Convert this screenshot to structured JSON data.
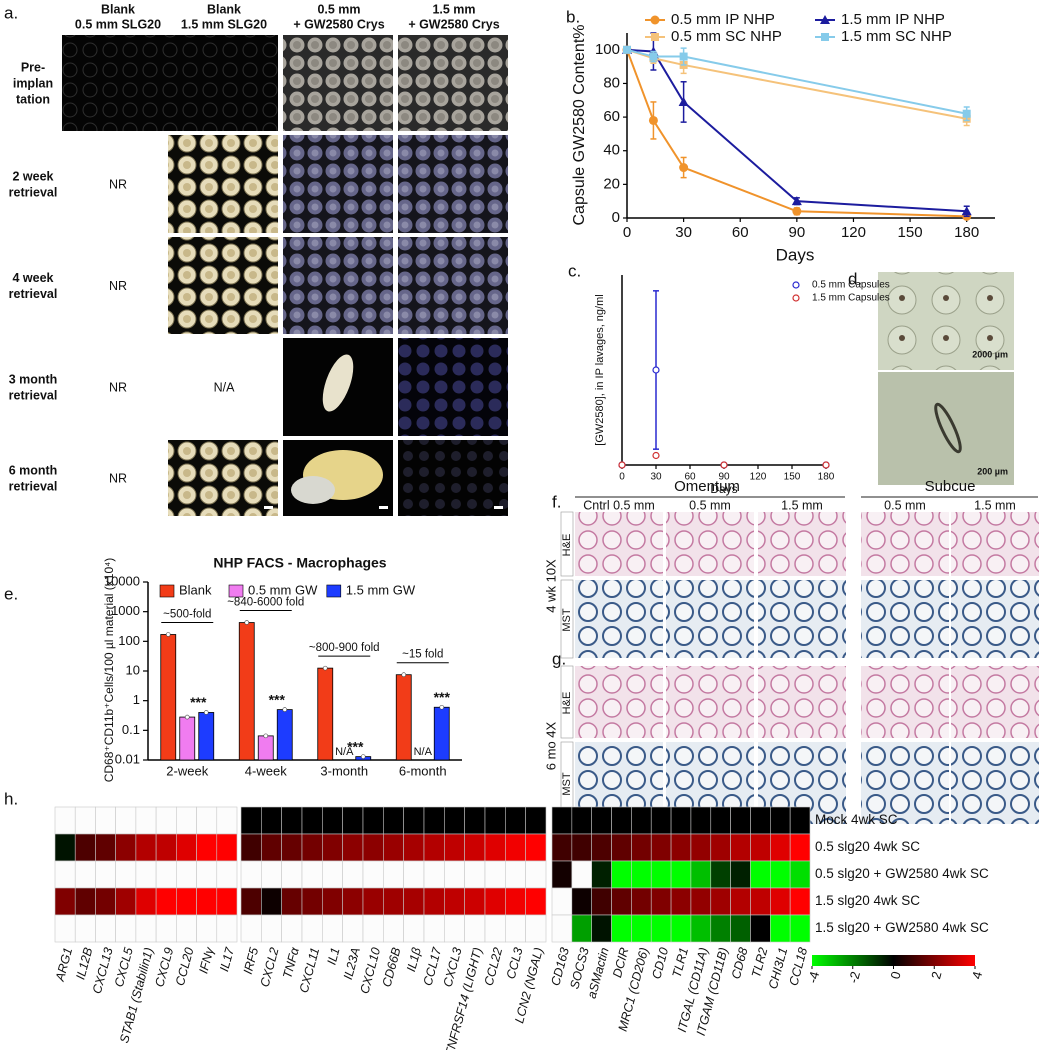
{
  "panel_a": {
    "label": "a.",
    "columns": [
      [
        "Blank",
        "0.5 mm SLG20"
      ],
      [
        "Blank",
        "1.5 mm SLG20"
      ],
      [
        "0.5 mm",
        "+ GW2580 Crys"
      ],
      [
        "1.5 mm",
        "+ GW2580 Crys"
      ]
    ],
    "rows": [
      {
        "label": [
          "Pre-",
          "implan",
          "tation"
        ],
        "cells": [
          null,
          null,
          null,
          null
        ]
      },
      {
        "label": [
          "2 week",
          "retrieval"
        ],
        "cells": [
          "NR",
          null,
          null,
          null
        ]
      },
      {
        "label": [
          "4 week",
          "retrieval"
        ],
        "cells": [
          "NR",
          null,
          null,
          null
        ]
      },
      {
        "label": [
          "3 month",
          "retrieval"
        ],
        "cells": [
          "NR",
          "N/A",
          null,
          null
        ]
      },
      {
        "label": [
          "6 month",
          "retrieval"
        ],
        "cells": [
          "NR",
          null,
          null,
          null
        ]
      }
    ]
  },
  "panel_d": {
    "label": "d.",
    "scale_labels": [
      "2000 µm",
      "200 µm"
    ]
  },
  "panels_fg": {
    "labels": [
      "f.",
      "g."
    ],
    "sites": [
      "Omentum",
      "Subcue"
    ],
    "columns": [
      "Cntrl 0.5 mm",
      "0.5 mm",
      "1.5 mm",
      "0.5 mm",
      "1.5 mm"
    ],
    "rows": [
      {
        "group": "4 wk 10X",
        "stains": [
          "H&E",
          "MST"
        ]
      },
      {
        "group": "6 mo 4X",
        "stains": [
          "H&E",
          "MST"
        ]
      }
    ]
  },
  "chart_data": [
    {
      "type": "line",
      "label": "b.",
      "y_label": "Capsule GW2580 Content%",
      "x_label": "Days",
      "xlim": [
        0,
        195
      ],
      "xticks": [
        0,
        30,
        60,
        90,
        120,
        150,
        180
      ],
      "ylim": [
        0,
        110
      ],
      "yticks": [
        0,
        20,
        40,
        60,
        80,
        100
      ],
      "series": [
        {
          "name": "0.5 mm IP NHP",
          "color": "#f0932b",
          "marker": "circle",
          "x": [
            0,
            14,
            30,
            90,
            180
          ],
          "values": [
            100,
            58,
            30,
            4,
            1
          ],
          "errors": [
            0,
            11,
            6,
            2,
            1
          ]
        },
        {
          "name": "1.5 mm IP NHP",
          "color": "#1c1c9e",
          "marker": "triangle",
          "x": [
            0,
            14,
            30,
            90,
            180
          ],
          "values": [
            100,
            99,
            69,
            10,
            4
          ],
          "errors": [
            0,
            11,
            12,
            2,
            3
          ]
        },
        {
          "name": "0.5 mm SC NHP",
          "color": "#f5c27a",
          "marker": "square",
          "x": [
            0,
            14,
            30,
            180
          ],
          "values": [
            100,
            95,
            91,
            59
          ],
          "errors": [
            0,
            3,
            5,
            4
          ]
        },
        {
          "name": "1.5 mm SC NHP",
          "color": "#86cbea",
          "marker": "square",
          "x": [
            0,
            14,
            30,
            180
          ],
          "values": [
            100,
            96,
            96,
            62
          ],
          "errors": [
            0,
            3,
            5,
            4
          ]
        }
      ]
    },
    {
      "type": "scatter",
      "label": "c.",
      "y_label": "[GW2580], in IP lavages, ng/ml",
      "x_label": "Days",
      "xlim": [
        0,
        180
      ],
      "xticks": [
        0,
        30,
        60,
        90,
        120,
        150,
        180
      ],
      "ylim": [
        0,
        60
      ],
      "series": [
        {
          "name": "0.5 mm Capsules",
          "color": "#2a2ad0",
          "marker": "hollow",
          "x": [
            0,
            30,
            90,
            180
          ],
          "values": [
            0,
            30,
            0,
            0
          ],
          "errors": [
            0,
            25,
            0,
            0
          ]
        },
        {
          "name": "1.5 mm Capsules",
          "color": "#d03030",
          "marker": "hollow",
          "x": [
            0,
            30,
            90,
            180
          ],
          "values": [
            0,
            3,
            0,
            0
          ]
        }
      ]
    },
    {
      "type": "bar",
      "label": "e.",
      "title": "NHP FACS - Macrophages",
      "y_label": "CD68⁺CD11b⁺Cells/100 µl material (x10⁴)",
      "log_y": true,
      "ylim": [
        0.01,
        10000
      ],
      "yticks": [
        0.01,
        0.1,
        1,
        10,
        100,
        1000,
        10000
      ],
      "categories": [
        "2-week",
        "4-week",
        "3-month",
        "6-month"
      ],
      "fold_labels": [
        "~500-fold",
        "~840-6000 fold",
        "~800-900 fold",
        "~15 fold"
      ],
      "legend": "top",
      "series": [
        {
          "name": "Blank",
          "color": "#f23c18",
          "values": [
            170,
            430,
            12.5,
            7.5
          ]
        },
        {
          "name": "0.5 mm GW",
          "color": "#f07cf0",
          "values": [
            0.28,
            0.065,
            null,
            null
          ],
          "value_labels": [
            null,
            null,
            "N/A",
            "N/A"
          ]
        },
        {
          "name": "1.5 mm GW",
          "color": "#1d3cff",
          "values": [
            0.4,
            0.5,
            0.013,
            0.6
          ],
          "significance": [
            "***",
            "***",
            "***",
            "***"
          ]
        }
      ]
    },
    {
      "type": "heatmap",
      "label": "h.",
      "rows": [
        "Mock 4wk SC",
        "0.5 slg20 4wk SC",
        "0.5 slg20 + GW2580 4wk SC",
        "1.5 slg20 4wk SC",
        "1.5 slg20 + GW2580 4wk SC"
      ],
      "column_groups": [
        [
          "ARG1",
          "IL12B",
          "CXCL13",
          "CXCL5",
          "STAB1 (Stabilin1)",
          "CXCL9",
          "CCL20",
          "IFNγ",
          "IL17"
        ],
        [
          "IRF5",
          "CXCL2",
          "TNFα",
          "CXCL11",
          "IL1",
          "IL23A",
          "CXCL10",
          "CD66B",
          "IL1β",
          "CCL17",
          "CXCL3",
          "TNFRSF14 (LIGHT)",
          "CCL22",
          "CCL3",
          "LCN2 (NGAL)"
        ],
        [
          "CD163",
          "SOCS3",
          "aSMactin",
          "DCIR",
          "MRC1 (CD206)",
          "CD10",
          "TLR1",
          "ITGAL (CD11A)",
          "ITGAM (CD11B)",
          "CD68",
          "TLR2",
          "CHI3L1",
          "CCL18"
        ]
      ],
      "values": [
        [
          [
            null,
            null,
            null,
            null,
            null,
            null,
            null,
            null,
            null
          ],
          [
            0,
            0,
            0,
            0,
            0,
            0,
            0,
            0,
            0,
            0,
            0,
            0,
            0,
            0,
            0
          ],
          [
            0,
            0,
            0,
            0,
            0,
            0,
            0,
            0,
            0,
            0,
            0,
            0,
            0
          ]
        ],
        [
          [
            -0.3,
            1.2,
            1.5,
            2.2,
            2.8,
            3,
            3.5,
            4,
            4
          ],
          [
            1,
            1.5,
            1.6,
            1.8,
            2,
            2.2,
            2.2,
            2.4,
            2.6,
            2.8,
            3,
            3.2,
            3.5,
            3.8,
            4
          ],
          [
            1,
            1,
            1.2,
            1.5,
            1.8,
            2,
            2.2,
            2.3,
            2.5,
            2.8,
            3,
            3.5,
            4
          ]
        ],
        [
          [
            null,
            null,
            null,
            null,
            null,
            null,
            null,
            null,
            null
          ],
          [
            null,
            null,
            null,
            null,
            null,
            null,
            null,
            null,
            null,
            null,
            null,
            null,
            null,
            null,
            null
          ],
          [
            0.3,
            null,
            -0.5,
            -4,
            -4,
            -4,
            -4,
            -3,
            -1,
            -0.5,
            -4,
            -4,
            -3.5
          ]
        ],
        [
          [
            2,
            1.5,
            1.8,
            2.5,
            3.5,
            4,
            4,
            4,
            4
          ],
          [
            1.2,
            0.2,
            1.6,
            1.8,
            2,
            2.2,
            2.4,
            2.5,
            2.6,
            2.8,
            3,
            3.2,
            3.5,
            3.8,
            4
          ],
          [
            null,
            0.2,
            1,
            1.5,
            1.8,
            2,
            2.2,
            2.3,
            2.5,
            2.8,
            3,
            3.5,
            4
          ]
        ],
        [
          [
            null,
            null,
            null,
            null,
            null,
            null,
            null,
            null,
            null
          ],
          [
            null,
            null,
            null,
            null,
            null,
            null,
            null,
            null,
            null,
            null,
            null,
            null,
            null,
            null,
            null
          ],
          [
            null,
            -2.5,
            -0.3,
            -4,
            -4,
            -4,
            -4,
            -3,
            -2,
            -1.5,
            0,
            -4,
            -4
          ]
        ]
      ],
      "clim": [
        -4,
        4
      ],
      "colors": [
        "#00ff00",
        "#000000",
        "#ff0000"
      ],
      "cticks": [
        -4,
        -2,
        0,
        2,
        4
      ]
    }
  ]
}
